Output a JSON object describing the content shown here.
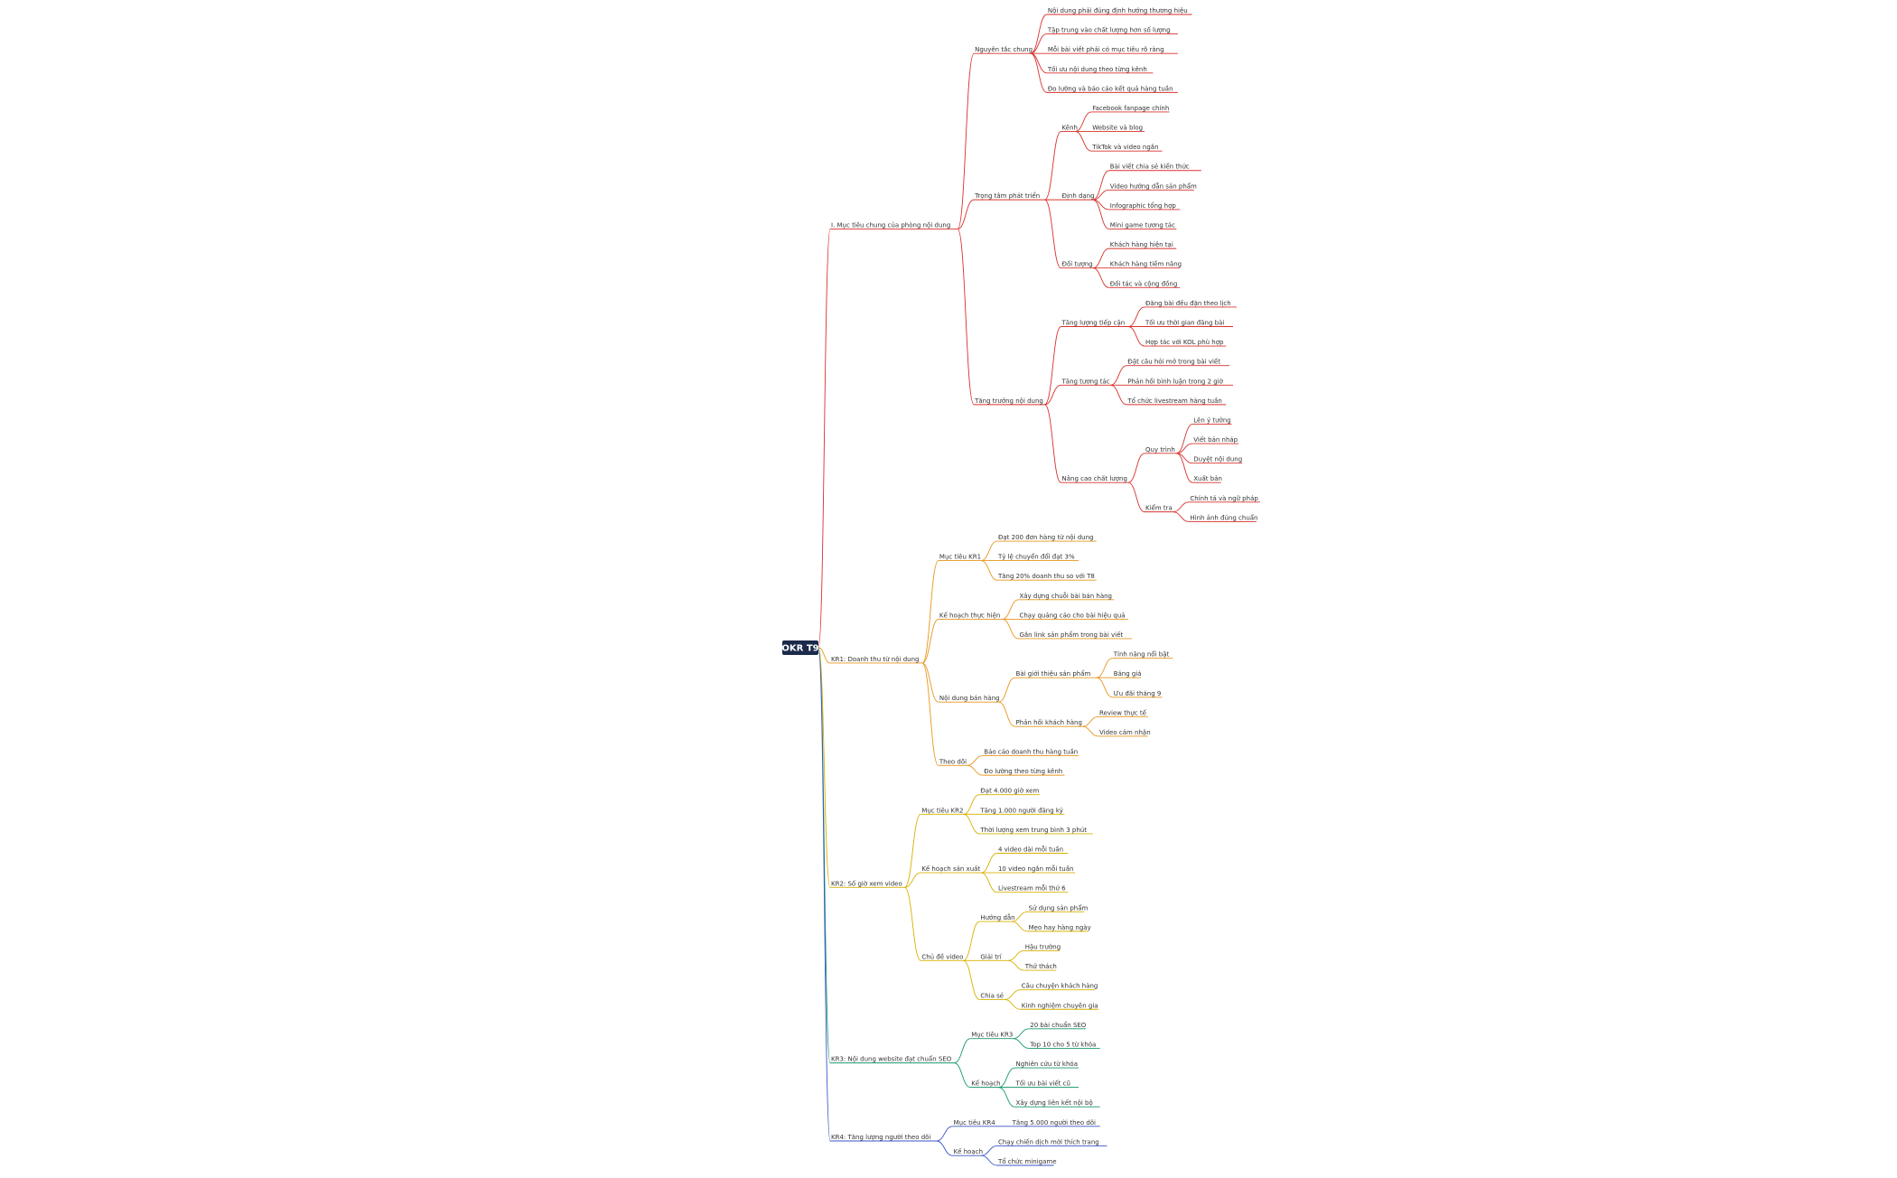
{
  "root": {
    "label": "OKR T9",
    "children": [
      {
        "label": "I. Mục tiêu chung của phòng nội dung",
        "color": "#d9302c",
        "children": [
          {
            "label": "Nguyên tắc chung",
            "children": [
              {
                "label": "Nội dung phải đúng định hướng thương hiệu"
              },
              {
                "label": "Tập trung vào chất lượng hơn số lượng"
              },
              {
                "label": "Mỗi bài viết phải có mục tiêu rõ ràng"
              },
              {
                "label": "Tối ưu nội dung theo từng kênh"
              },
              {
                "label": "Đo lường và báo cáo kết quả hàng tuần"
              }
            ]
          },
          {
            "label": "Trọng tâm phát triển",
            "children": [
              {
                "label": "Kênh",
                "children": [
                  {
                    "label": "Facebook fanpage chính"
                  },
                  {
                    "label": "Website và blog"
                  },
                  {
                    "label": "TikTok và video ngắn"
                  }
                ]
              },
              {
                "label": "Định dạng",
                "children": [
                  {
                    "label": "Bài viết chia sẻ kiến thức"
                  },
                  {
                    "label": "Video hướng dẫn sản phẩm"
                  },
                  {
                    "label": "Infographic tổng hợp"
                  },
                  {
                    "label": "Mini game tương tác"
                  }
                ]
              },
              {
                "label": "Đối tượng",
                "children": [
                  {
                    "label": "Khách hàng hiện tại"
                  },
                  {
                    "label": "Khách hàng tiềm năng"
                  },
                  {
                    "label": "Đối tác và cộng đồng"
                  }
                ]
              }
            ]
          },
          {
            "label": "Tăng trưởng nội dung",
            "children": [
              {
                "label": "Tăng lượng tiếp cận",
                "children": [
                  {
                    "label": "Đăng bài đều đặn theo lịch"
                  },
                  {
                    "label": "Tối ưu thời gian đăng bài"
                  },
                  {
                    "label": "Hợp tác với KOL phù hợp"
                  }
                ]
              },
              {
                "label": "Tăng tương tác",
                "children": [
                  {
                    "label": "Đặt câu hỏi mở trong bài viết"
                  },
                  {
                    "label": "Phản hồi bình luận trong 2 giờ"
                  },
                  {
                    "label": "Tổ chức livestream hàng tuần"
                  }
                ]
              },
              {
                "label": "Nâng cao chất lượng",
                "children": [
                  {
                    "label": "Quy trình",
                    "children": [
                      {
                        "label": "Lên ý tưởng"
                      },
                      {
                        "label": "Viết bản nháp"
                      },
                      {
                        "label": "Duyệt nội dung"
                      },
                      {
                        "label": "Xuất bản"
                      }
                    ]
                  },
                  {
                    "label": "Kiểm tra",
                    "children": [
                      {
                        "label": "Chính tả và ngữ pháp"
                      },
                      {
                        "label": "Hình ảnh đúng chuẩn"
                      }
                    ]
                  }
                ]
              }
            ]
          }
        ]
      },
      {
        "label": "KR1: Doanh thu từ nội dung",
        "color": "#e8961c",
        "children": [
          {
            "label": "Mục tiêu KR1",
            "children": [
              {
                "label": "Đạt 200 đơn hàng từ nội dung"
              },
              {
                "label": "Tỷ lệ chuyển đổi đạt 3%"
              },
              {
                "label": "Tăng 20% doanh thu so với T8"
              }
            ]
          },
          {
            "label": "Kế hoạch thực hiện",
            "children": [
              {
                "label": "Xây dựng chuỗi bài bán hàng"
              },
              {
                "label": "Chạy quảng cáo cho bài hiệu quả"
              },
              {
                "label": "Gắn link sản phẩm trong bài viết"
              }
            ]
          },
          {
            "label": "Nội dung bán hàng",
            "children": [
              {
                "label": "Bài giới thiệu sản phẩm",
                "children": [
                  {
                    "label": "Tính năng nổi bật"
                  },
                  {
                    "label": "Bảng giá"
                  },
                  {
                    "label": "Ưu đãi tháng 9"
                  }
                ]
              },
              {
                "label": "Phản hồi khách hàng",
                "children": [
                  {
                    "label": "Review thực tế"
                  },
                  {
                    "label": "Video cảm nhận"
                  }
                ]
              }
            ]
          },
          {
            "label": "Theo dõi",
            "children": [
              {
                "label": "Báo cáo doanh thu hàng tuần"
              },
              {
                "label": "Đo lường theo từng kênh"
              }
            ]
          }
        ]
      },
      {
        "label": "KR2: Số giờ xem video",
        "color": "#d8b000",
        "children": [
          {
            "label": "Mục tiêu KR2",
            "children": [
              {
                "label": "Đạt 4.000 giờ xem"
              },
              {
                "label": "Tăng 1.000 người đăng ký"
              },
              {
                "label": "Thời lượng xem trung bình 3 phút"
              }
            ]
          },
          {
            "label": "Kế hoạch sản xuất",
            "children": [
              {
                "label": "4 video dài mỗi tuần"
              },
              {
                "label": "10 video ngắn mỗi tuần"
              },
              {
                "label": "Livestream mỗi thứ 6"
              }
            ]
          },
          {
            "label": "Chủ đề video",
            "children": [
              {
                "label": "Hướng dẫn",
                "children": [
                  {
                    "label": "Sử dụng sản phẩm"
                  },
                  {
                    "label": "Mẹo hay hàng ngày"
                  }
                ]
              },
              {
                "label": "Giải trí",
                "children": [
                  {
                    "label": "Hậu trường"
                  },
                  {
                    "label": "Thử thách"
                  }
                ]
              },
              {
                "label": "Chia sẻ",
                "children": [
                  {
                    "label": "Câu chuyện khách hàng"
                  },
                  {
                    "label": "Kinh nghiệm chuyên gia"
                  }
                ]
              }
            ]
          }
        ]
      },
      {
        "label": "KR3: Nội dung website đạt chuẩn SEO",
        "color": "#17986a",
        "children": [
          {
            "label": "Mục tiêu KR3",
            "children": [
              {
                "label": "20 bài chuẩn SEO"
              },
              {
                "label": "Top 10 cho 5 từ khóa"
              }
            ]
          },
          {
            "label": "Kế hoạch",
            "children": [
              {
                "label": "Nghiên cứu từ khóa"
              },
              {
                "label": "Tối ưu bài viết cũ"
              },
              {
                "label": "Xây dựng liên kết nội bộ"
              }
            ]
          }
        ]
      },
      {
        "label": "KR4: Tăng lượng người theo dõi",
        "color": "#3a55c8",
        "children": [
          {
            "label": "Mục tiêu KR4",
            "children": [
              {
                "label": "Tăng 5.000 người theo dõi"
              }
            ]
          },
          {
            "label": "Kế hoạch",
            "children": [
              {
                "label": "Chạy chiến dịch mời thích trang"
              },
              {
                "label": "Tổ chức minigame"
              }
            ]
          }
        ]
      }
    ]
  }
}
